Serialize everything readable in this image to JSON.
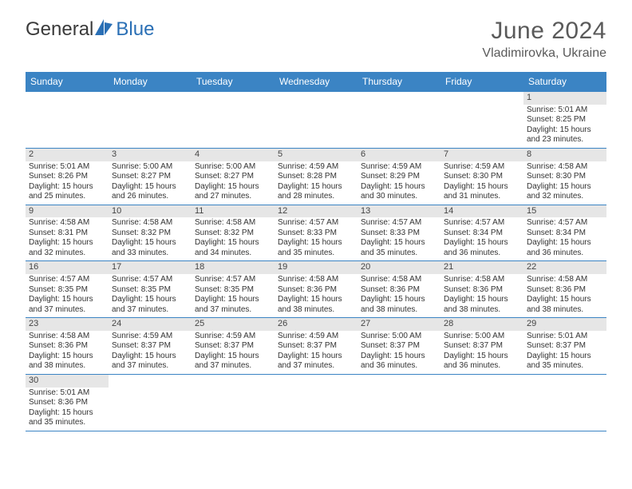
{
  "logo": {
    "text1": "General",
    "text2": "Blue",
    "sail_color": "#2a6fb5"
  },
  "title": "June 2024",
  "location": "Vladimirovka, Ukraine",
  "colors": {
    "header_bg": "#3b84c4",
    "header_text": "#ffffff",
    "daynum_bg": "#e6e6e6",
    "row_border": "#3b84c4",
    "body_text": "#333333"
  },
  "dow": [
    "Sunday",
    "Monday",
    "Tuesday",
    "Wednesday",
    "Thursday",
    "Friday",
    "Saturday"
  ],
  "weeks": [
    [
      {
        "n": "",
        "sr": "",
        "ss": "",
        "dl1": "",
        "dl2": ""
      },
      {
        "n": "",
        "sr": "",
        "ss": "",
        "dl1": "",
        "dl2": ""
      },
      {
        "n": "",
        "sr": "",
        "ss": "",
        "dl1": "",
        "dl2": ""
      },
      {
        "n": "",
        "sr": "",
        "ss": "",
        "dl1": "",
        "dl2": ""
      },
      {
        "n": "",
        "sr": "",
        "ss": "",
        "dl1": "",
        "dl2": ""
      },
      {
        "n": "",
        "sr": "",
        "ss": "",
        "dl1": "",
        "dl2": ""
      },
      {
        "n": "1",
        "sr": "Sunrise: 5:01 AM",
        "ss": "Sunset: 8:25 PM",
        "dl1": "Daylight: 15 hours",
        "dl2": "and 23 minutes."
      }
    ],
    [
      {
        "n": "2",
        "sr": "Sunrise: 5:01 AM",
        "ss": "Sunset: 8:26 PM",
        "dl1": "Daylight: 15 hours",
        "dl2": "and 25 minutes."
      },
      {
        "n": "3",
        "sr": "Sunrise: 5:00 AM",
        "ss": "Sunset: 8:27 PM",
        "dl1": "Daylight: 15 hours",
        "dl2": "and 26 minutes."
      },
      {
        "n": "4",
        "sr": "Sunrise: 5:00 AM",
        "ss": "Sunset: 8:27 PM",
        "dl1": "Daylight: 15 hours",
        "dl2": "and 27 minutes."
      },
      {
        "n": "5",
        "sr": "Sunrise: 4:59 AM",
        "ss": "Sunset: 8:28 PM",
        "dl1": "Daylight: 15 hours",
        "dl2": "and 28 minutes."
      },
      {
        "n": "6",
        "sr": "Sunrise: 4:59 AM",
        "ss": "Sunset: 8:29 PM",
        "dl1": "Daylight: 15 hours",
        "dl2": "and 30 minutes."
      },
      {
        "n": "7",
        "sr": "Sunrise: 4:59 AM",
        "ss": "Sunset: 8:30 PM",
        "dl1": "Daylight: 15 hours",
        "dl2": "and 31 minutes."
      },
      {
        "n": "8",
        "sr": "Sunrise: 4:58 AM",
        "ss": "Sunset: 8:30 PM",
        "dl1": "Daylight: 15 hours",
        "dl2": "and 32 minutes."
      }
    ],
    [
      {
        "n": "9",
        "sr": "Sunrise: 4:58 AM",
        "ss": "Sunset: 8:31 PM",
        "dl1": "Daylight: 15 hours",
        "dl2": "and 32 minutes."
      },
      {
        "n": "10",
        "sr": "Sunrise: 4:58 AM",
        "ss": "Sunset: 8:32 PM",
        "dl1": "Daylight: 15 hours",
        "dl2": "and 33 minutes."
      },
      {
        "n": "11",
        "sr": "Sunrise: 4:58 AM",
        "ss": "Sunset: 8:32 PM",
        "dl1": "Daylight: 15 hours",
        "dl2": "and 34 minutes."
      },
      {
        "n": "12",
        "sr": "Sunrise: 4:57 AM",
        "ss": "Sunset: 8:33 PM",
        "dl1": "Daylight: 15 hours",
        "dl2": "and 35 minutes."
      },
      {
        "n": "13",
        "sr": "Sunrise: 4:57 AM",
        "ss": "Sunset: 8:33 PM",
        "dl1": "Daylight: 15 hours",
        "dl2": "and 35 minutes."
      },
      {
        "n": "14",
        "sr": "Sunrise: 4:57 AM",
        "ss": "Sunset: 8:34 PM",
        "dl1": "Daylight: 15 hours",
        "dl2": "and 36 minutes."
      },
      {
        "n": "15",
        "sr": "Sunrise: 4:57 AM",
        "ss": "Sunset: 8:34 PM",
        "dl1": "Daylight: 15 hours",
        "dl2": "and 36 minutes."
      }
    ],
    [
      {
        "n": "16",
        "sr": "Sunrise: 4:57 AM",
        "ss": "Sunset: 8:35 PM",
        "dl1": "Daylight: 15 hours",
        "dl2": "and 37 minutes."
      },
      {
        "n": "17",
        "sr": "Sunrise: 4:57 AM",
        "ss": "Sunset: 8:35 PM",
        "dl1": "Daylight: 15 hours",
        "dl2": "and 37 minutes."
      },
      {
        "n": "18",
        "sr": "Sunrise: 4:57 AM",
        "ss": "Sunset: 8:35 PM",
        "dl1": "Daylight: 15 hours",
        "dl2": "and 37 minutes."
      },
      {
        "n": "19",
        "sr": "Sunrise: 4:58 AM",
        "ss": "Sunset: 8:36 PM",
        "dl1": "Daylight: 15 hours",
        "dl2": "and 38 minutes."
      },
      {
        "n": "20",
        "sr": "Sunrise: 4:58 AM",
        "ss": "Sunset: 8:36 PM",
        "dl1": "Daylight: 15 hours",
        "dl2": "and 38 minutes."
      },
      {
        "n": "21",
        "sr": "Sunrise: 4:58 AM",
        "ss": "Sunset: 8:36 PM",
        "dl1": "Daylight: 15 hours",
        "dl2": "and 38 minutes."
      },
      {
        "n": "22",
        "sr": "Sunrise: 4:58 AM",
        "ss": "Sunset: 8:36 PM",
        "dl1": "Daylight: 15 hours",
        "dl2": "and 38 minutes."
      }
    ],
    [
      {
        "n": "23",
        "sr": "Sunrise: 4:58 AM",
        "ss": "Sunset: 8:36 PM",
        "dl1": "Daylight: 15 hours",
        "dl2": "and 38 minutes."
      },
      {
        "n": "24",
        "sr": "Sunrise: 4:59 AM",
        "ss": "Sunset: 8:37 PM",
        "dl1": "Daylight: 15 hours",
        "dl2": "and 37 minutes."
      },
      {
        "n": "25",
        "sr": "Sunrise: 4:59 AM",
        "ss": "Sunset: 8:37 PM",
        "dl1": "Daylight: 15 hours",
        "dl2": "and 37 minutes."
      },
      {
        "n": "26",
        "sr": "Sunrise: 4:59 AM",
        "ss": "Sunset: 8:37 PM",
        "dl1": "Daylight: 15 hours",
        "dl2": "and 37 minutes."
      },
      {
        "n": "27",
        "sr": "Sunrise: 5:00 AM",
        "ss": "Sunset: 8:37 PM",
        "dl1": "Daylight: 15 hours",
        "dl2": "and 36 minutes."
      },
      {
        "n": "28",
        "sr": "Sunrise: 5:00 AM",
        "ss": "Sunset: 8:37 PM",
        "dl1": "Daylight: 15 hours",
        "dl2": "and 36 minutes."
      },
      {
        "n": "29",
        "sr": "Sunrise: 5:01 AM",
        "ss": "Sunset: 8:37 PM",
        "dl1": "Daylight: 15 hours",
        "dl2": "and 35 minutes."
      }
    ],
    [
      {
        "n": "30",
        "sr": "Sunrise: 5:01 AM",
        "ss": "Sunset: 8:36 PM",
        "dl1": "Daylight: 15 hours",
        "dl2": "and 35 minutes."
      },
      {
        "n": "",
        "sr": "",
        "ss": "",
        "dl1": "",
        "dl2": ""
      },
      {
        "n": "",
        "sr": "",
        "ss": "",
        "dl1": "",
        "dl2": ""
      },
      {
        "n": "",
        "sr": "",
        "ss": "",
        "dl1": "",
        "dl2": ""
      },
      {
        "n": "",
        "sr": "",
        "ss": "",
        "dl1": "",
        "dl2": ""
      },
      {
        "n": "",
        "sr": "",
        "ss": "",
        "dl1": "",
        "dl2": ""
      },
      {
        "n": "",
        "sr": "",
        "ss": "",
        "dl1": "",
        "dl2": ""
      }
    ]
  ]
}
